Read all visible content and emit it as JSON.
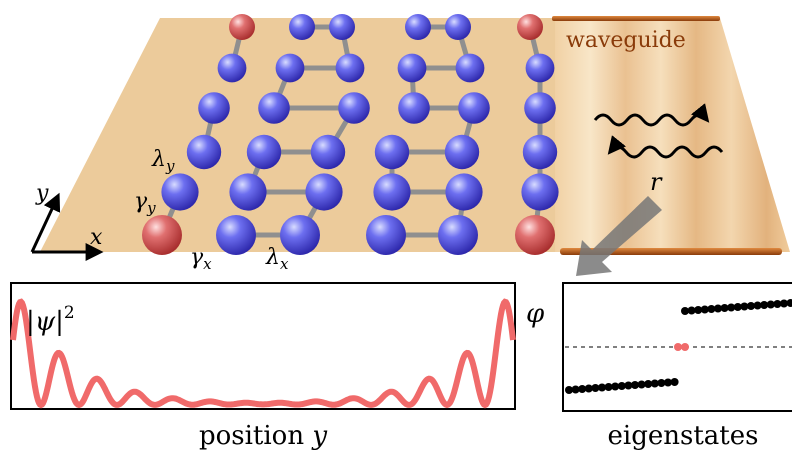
{
  "labels": {
    "waveguide": "waveguide",
    "coupling": "r",
    "lambda_y": {
      "symbol": "λ",
      "subscript": "y"
    },
    "gamma_y": {
      "symbol": "γ",
      "subscript": "y"
    },
    "gamma_x": {
      "symbol": "γ",
      "subscript": "x"
    },
    "lambda_x": {
      "symbol": "λ",
      "subscript": "x"
    },
    "axis_x": "x",
    "axis_y": "y",
    "density": {
      "symbol": "|ψ|",
      "superscript": "2"
    },
    "position_label": {
      "text": "position",
      "variable": "y"
    },
    "eigenstates_label": "eigenstates",
    "phase": "φ"
  }
}
